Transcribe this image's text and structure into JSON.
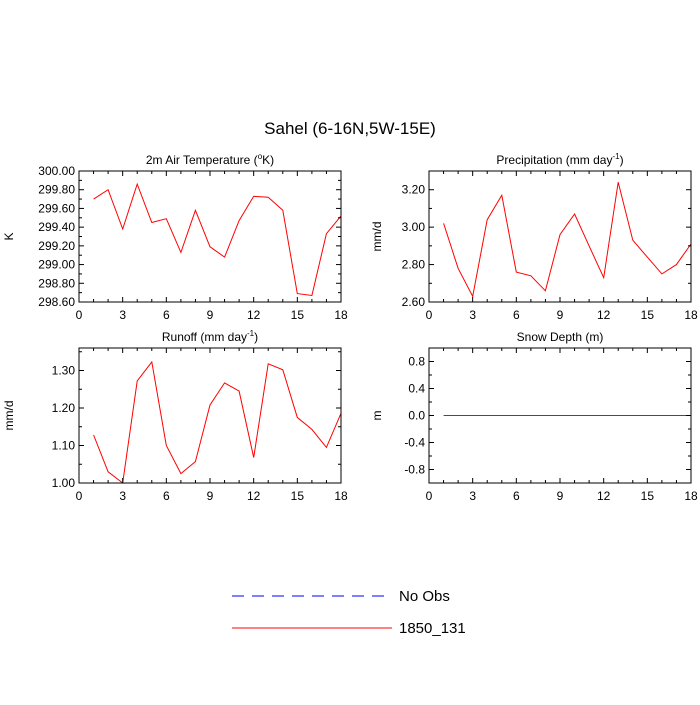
{
  "figure": {
    "title": "Sahel (6-16N,5W-15E)"
  },
  "legend": {
    "placement": "bottom-center",
    "entries": [
      {
        "name": "No Obs",
        "color": "#0000ff",
        "style": "dashed"
      },
      {
        "name": "1850_131",
        "color": "#ff0000",
        "style": "solid"
      }
    ]
  },
  "chart_data": [
    {
      "type": "line",
      "title_main": "2m Air Temperature (",
      "title_sup": "o",
      "title_tail": "K)",
      "ylabel": "K",
      "xlim": [
        0,
        18
      ],
      "ylim": [
        298.6,
        300.0
      ],
      "xticks": [
        "0",
        "3",
        "6",
        "9",
        "12",
        "15",
        "18"
      ],
      "yticks": [
        {
          "v": 298.6,
          "label": "298.60"
        },
        {
          "v": 298.8,
          "label": "298.80"
        },
        {
          "v": 299.0,
          "label": "299.00"
        },
        {
          "v": 299.2,
          "label": "299.20"
        },
        {
          "v": 299.4,
          "label": "299.40"
        },
        {
          "v": 299.6,
          "label": "299.60"
        },
        {
          "v": 299.8,
          "label": "299.80"
        },
        {
          "v": 300.0,
          "label": "300.00"
        }
      ],
      "series": [
        {
          "color": "#ff0000",
          "x": [
            1,
            2,
            3,
            4,
            5,
            6,
            7,
            8,
            9,
            10,
            11,
            12,
            13,
            14,
            15,
            16,
            17,
            18
          ],
          "y": [
            299.7,
            299.8,
            299.38,
            299.86,
            299.45,
            299.49,
            299.13,
            299.58,
            299.19,
            299.08,
            299.47,
            299.73,
            299.72,
            299.58,
            298.69,
            298.67,
            299.33,
            299.52
          ]
        }
      ]
    },
    {
      "type": "line",
      "title_main": "Precipitation (mm day",
      "title_sup": "-1",
      "title_tail": ")",
      "ylabel": "mm/d",
      "xlim": [
        0,
        18
      ],
      "ylim": [
        2.6,
        3.3
      ],
      "xticks": [
        "0",
        "3",
        "6",
        "9",
        "12",
        "15",
        "18"
      ],
      "yticks": [
        {
          "v": 2.6,
          "label": "2.60"
        },
        {
          "v": 2.8,
          "label": "2.80"
        },
        {
          "v": 3.0,
          "label": "3.00"
        },
        {
          "v": 3.2,
          "label": "3.20"
        }
      ],
      "series": [
        {
          "color": "#ff0000",
          "x": [
            1,
            2,
            3,
            4,
            5,
            6,
            7,
            8,
            9,
            10,
            11,
            12,
            13,
            14,
            15,
            16,
            17,
            18
          ],
          "y": [
            3.02,
            2.78,
            2.63,
            3.04,
            3.17,
            2.76,
            2.74,
            2.66,
            2.96,
            3.07,
            2.9,
            2.73,
            3.24,
            2.93,
            2.84,
            2.75,
            2.8,
            2.91
          ]
        }
      ]
    },
    {
      "type": "line",
      "title_main": "Runoff (mm day",
      "title_sup": "-1",
      "title_tail": ")",
      "ylabel": "mm/d",
      "xlim": [
        0,
        18
      ],
      "ylim": [
        1.0,
        1.36
      ],
      "xticks": [
        "0",
        "3",
        "6",
        "9",
        "12",
        "15",
        "18"
      ],
      "yticks": [
        {
          "v": 1.0,
          "label": "1.00"
        },
        {
          "v": 1.1,
          "label": "1.10"
        },
        {
          "v": 1.2,
          "label": "1.20"
        },
        {
          "v": 1.3,
          "label": "1.30"
        }
      ],
      "series": [
        {
          "color": "#ff0000",
          "x": [
            1,
            2,
            3,
            4,
            5,
            6,
            7,
            8,
            9,
            10,
            11,
            12,
            13,
            14,
            15,
            16,
            17,
            18
          ],
          "y": [
            1.128,
            1.03,
            1.0,
            1.272,
            1.323,
            1.1,
            1.025,
            1.057,
            1.208,
            1.267,
            1.245,
            1.068,
            1.318,
            1.302,
            1.175,
            1.143,
            1.095,
            1.186
          ]
        }
      ]
    },
    {
      "type": "line",
      "title_main": "Snow Depth (m)",
      "title_sup": "",
      "title_tail": "",
      "ylabel": "m",
      "xlim": [
        0,
        18
      ],
      "ylim": [
        -1.0,
        1.0
      ],
      "xticks": [
        "0",
        "3",
        "6",
        "9",
        "12",
        "15",
        "18"
      ],
      "yticks": [
        {
          "v": -0.8,
          "label": "-0.8"
        },
        {
          "v": -0.4,
          "label": "-0.4"
        },
        {
          "v": 0.0,
          "label": "0.0"
        },
        {
          "v": 0.4,
          "label": "0.4"
        },
        {
          "v": 0.8,
          "label": "0.8"
        }
      ],
      "series": [
        {
          "color": "#ff0000",
          "x": [
            1,
            2,
            3,
            4,
            5,
            6,
            7,
            8,
            9,
            10,
            11,
            12,
            13,
            14,
            15,
            16,
            17,
            18
          ],
          "y": [
            0,
            0,
            0,
            0,
            0,
            0,
            0,
            0,
            0,
            0,
            0,
            0,
            0,
            0,
            0,
            0,
            0,
            0
          ]
        }
      ]
    }
  ]
}
